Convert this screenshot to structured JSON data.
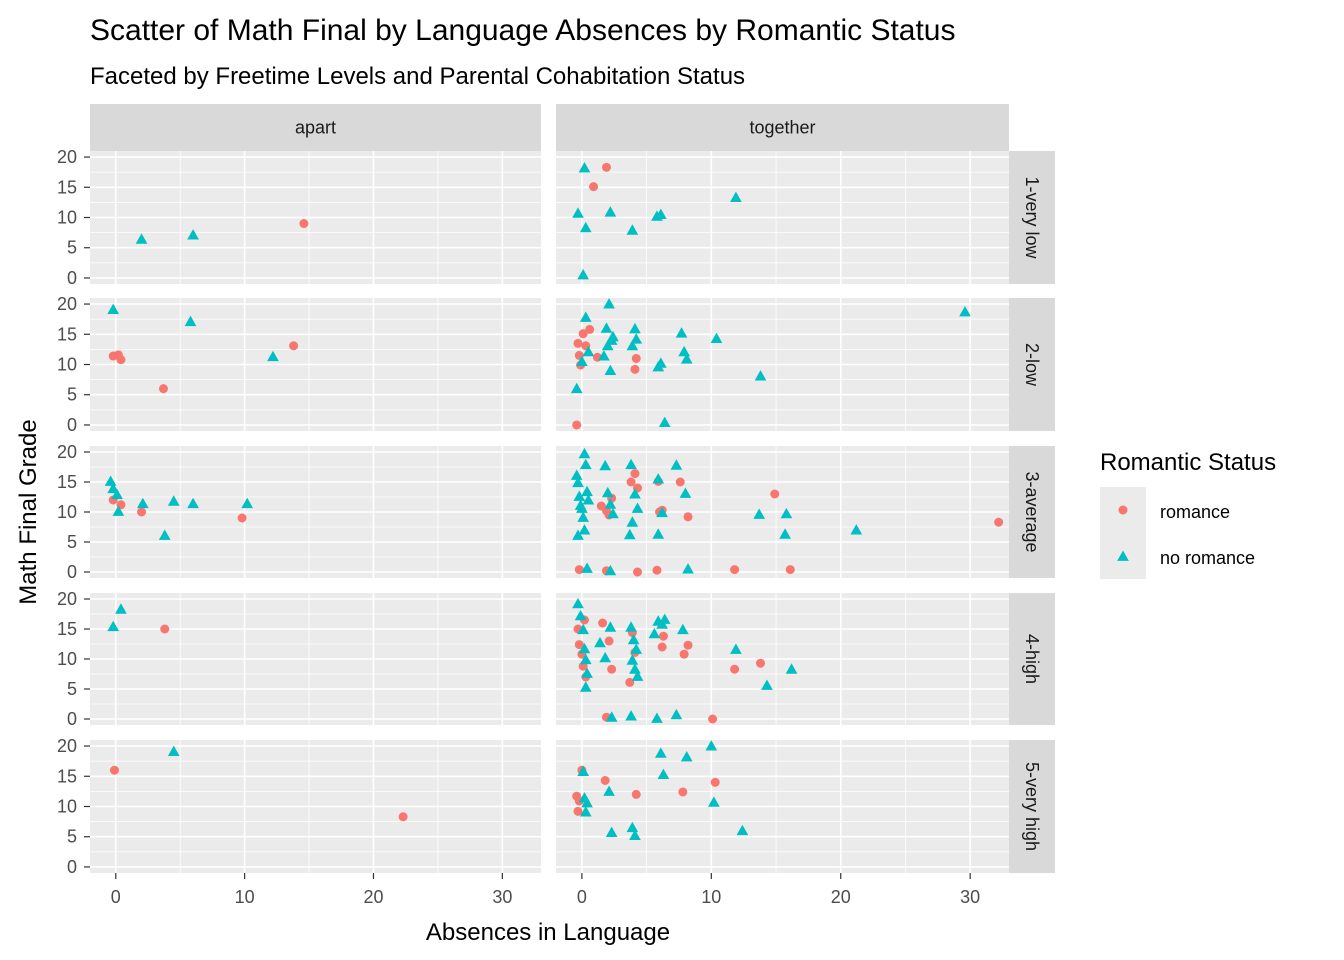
{
  "chart_data": {
    "type": "scatter",
    "title": "Scatter of Math Final by Language Absences by Romantic Status",
    "subtitle": "Faceted by Freetime Levels and Parental Cohabitation Status",
    "xlabel": "Absences in Language",
    "ylabel": "Math Final Grade",
    "xlim": [
      -2,
      33
    ],
    "ylim": [
      -1,
      21
    ],
    "x_ticks": [
      0,
      10,
      20,
      30
    ],
    "y_ticks": [
      0,
      5,
      10,
      15,
      20
    ],
    "grid": true,
    "legend_position": "right",
    "facet_columns": [
      "apart",
      "together"
    ],
    "facet_rows": [
      "1-very low",
      "2-low",
      "3-average",
      "4-high",
      "5-very high"
    ],
    "legend": {
      "title": "Romantic Status",
      "entries": [
        {
          "name": "romance",
          "shape": "circle",
          "color": "#F8766D"
        },
        {
          "name": "no romance",
          "shape": "triangle",
          "color": "#00BFC4"
        }
      ]
    },
    "panels": [
      {
        "col": "apart",
        "row": "1-very low",
        "romance": [
          [
            14.6,
            9
          ]
        ],
        "no_romance": [
          [
            2,
            6.3
          ],
          [
            6,
            7
          ]
        ]
      },
      {
        "col": "together",
        "row": "1-very low",
        "romance": [
          [
            1.9,
            18.3
          ],
          [
            0.9,
            15.1
          ]
        ],
        "no_romance": [
          [
            0.2,
            18.1
          ],
          [
            -0.3,
            10.6
          ],
          [
            0.3,
            8.2
          ],
          [
            2.2,
            10.8
          ],
          [
            3.9,
            7.8
          ],
          [
            5.8,
            10.1
          ],
          [
            6.1,
            10.4
          ],
          [
            11.9,
            13.2
          ],
          [
            0.1,
            0.4
          ]
        ]
      },
      {
        "col": "apart",
        "row": "2-low",
        "romance": [
          [
            -0.2,
            11.4
          ],
          [
            0.2,
            11.6
          ],
          [
            0.4,
            10.8
          ],
          [
            3.7,
            6
          ],
          [
            13.8,
            13.1
          ]
        ],
        "no_romance": [
          [
            -0.2,
            19
          ],
          [
            5.8,
            17
          ],
          [
            12.2,
            11.2
          ]
        ],
        "note": "small cluster near x=0, y=11"
      },
      {
        "col": "together",
        "row": "2-low",
        "romance": [
          [
            -0.3,
            13.5
          ],
          [
            -0.2,
            11.5
          ],
          [
            -0.1,
            9.9
          ],
          [
            0.1,
            15.1
          ],
          [
            0.3,
            13.1
          ],
          [
            0.6,
            15.8
          ],
          [
            1.2,
            11.2
          ],
          [
            4.2,
            11
          ],
          [
            4.1,
            9.2
          ],
          [
            -0.4,
            0
          ]
        ],
        "no_romance": [
          [
            -0.4,
            5.9
          ],
          [
            0,
            10.4
          ],
          [
            0.3,
            17.7
          ],
          [
            0.5,
            12
          ],
          [
            1.7,
            11.3
          ],
          [
            1.9,
            15.9
          ],
          [
            2,
            13
          ],
          [
            2.1,
            19.9
          ],
          [
            2.2,
            8.9
          ],
          [
            2.3,
            13.9
          ],
          [
            2.4,
            14.5
          ],
          [
            3.9,
            13
          ],
          [
            4.1,
            15.8
          ],
          [
            4.2,
            14.1
          ],
          [
            5.9,
            9.5
          ],
          [
            6.1,
            10.1
          ],
          [
            6.4,
            0.3
          ],
          [
            7.7,
            15.1
          ],
          [
            7.9,
            12
          ],
          [
            8.1,
            10.8
          ],
          [
            10.4,
            14.2
          ],
          [
            13.8,
            8
          ],
          [
            29.6,
            18.6
          ]
        ]
      },
      {
        "col": "apart",
        "row": "3-average",
        "romance": [
          [
            -0.2,
            12
          ],
          [
            0.4,
            11.2
          ],
          [
            2,
            10
          ],
          [
            9.8,
            9
          ]
        ],
        "no_romance": [
          [
            -0.4,
            15
          ],
          [
            -0.2,
            13.8
          ],
          [
            0.1,
            12.8
          ],
          [
            0.2,
            10
          ],
          [
            2.1,
            11.3
          ],
          [
            3.8,
            6
          ],
          [
            4.5,
            11.7
          ],
          [
            6,
            11.3
          ],
          [
            10.2,
            11.3
          ]
        ]
      },
      {
        "col": "together",
        "row": "3-average",
        "romance": [
          [
            1.5,
            11
          ],
          [
            1.9,
            10.2
          ],
          [
            2.1,
            9.5
          ],
          [
            2.3,
            12.3
          ],
          [
            3.8,
            15
          ],
          [
            4.1,
            16.4
          ],
          [
            4.3,
            14
          ],
          [
            5.9,
            15.1
          ],
          [
            6,
            10
          ],
          [
            6.2,
            10.3
          ],
          [
            7.6,
            15
          ],
          [
            8.2,
            9.2
          ],
          [
            14.9,
            13
          ],
          [
            32.2,
            8.3
          ],
          [
            -0.2,
            0.4
          ],
          [
            1.9,
            0.2
          ],
          [
            4.3,
            0
          ],
          [
            5.8,
            0.3
          ],
          [
            11.8,
            0.4
          ],
          [
            16.1,
            0.4
          ]
        ],
        "no_romance": [
          [
            -0.4,
            16
          ],
          [
            -0.3,
            14.8
          ],
          [
            -0.2,
            12.5
          ],
          [
            -0.1,
            11
          ],
          [
            0,
            10.5
          ],
          [
            0.1,
            9
          ],
          [
            0.2,
            19.6
          ],
          [
            0.3,
            17.8
          ],
          [
            0.4,
            13.3
          ],
          [
            0.5,
            11.9
          ],
          [
            -0.3,
            6
          ],
          [
            0.2,
            6.9
          ],
          [
            0.4,
            0.5
          ],
          [
            1.8,
            17.6
          ],
          [
            2,
            13.1
          ],
          [
            2.2,
            11.2
          ],
          [
            2.4,
            9.6
          ],
          [
            3.8,
            17.8
          ],
          [
            4.1,
            12.9
          ],
          [
            4.3,
            10.5
          ],
          [
            3.9,
            8.2
          ],
          [
            3.7,
            6.1
          ],
          [
            5.9,
            15.4
          ],
          [
            6.2,
            9.8
          ],
          [
            5.9,
            6.2
          ],
          [
            7.3,
            17.7
          ],
          [
            8,
            13
          ],
          [
            13.7,
            9.5
          ],
          [
            15.7,
            6.2
          ],
          [
            15.8,
            9.6
          ],
          [
            21.2,
            6.9
          ],
          [
            2.2,
            0.1
          ],
          [
            8.2,
            0.4
          ]
        ]
      },
      {
        "col": "apart",
        "row": "4-high",
        "romance": [
          [
            3.8,
            15
          ]
        ],
        "no_romance": [
          [
            -0.2,
            15.3
          ],
          [
            0.4,
            18.2
          ]
        ]
      },
      {
        "col": "together",
        "row": "4-high",
        "romance": [
          [
            -0.3,
            15
          ],
          [
            -0.2,
            12.4
          ],
          [
            0,
            10.8
          ],
          [
            0.1,
            8.8
          ],
          [
            0.3,
            7
          ],
          [
            0.2,
            16.5
          ],
          [
            1.6,
            16
          ],
          [
            2.1,
            13
          ],
          [
            2.3,
            8.3
          ],
          [
            3.7,
            6.1
          ],
          [
            3.9,
            14.4
          ],
          [
            4.1,
            11.1
          ],
          [
            6.2,
            12
          ],
          [
            6.3,
            13.8
          ],
          [
            7.9,
            10.8
          ],
          [
            8.2,
            12.3
          ],
          [
            11.8,
            8.3
          ],
          [
            13.8,
            9.3
          ],
          [
            1.9,
            0.3
          ],
          [
            10.1,
            0
          ]
        ],
        "no_romance": [
          [
            -0.3,
            19.1
          ],
          [
            -0.1,
            17.1
          ],
          [
            0.1,
            14.8
          ],
          [
            0.2,
            11.6
          ],
          [
            0.3,
            9.8
          ],
          [
            0.4,
            7.5
          ],
          [
            0.3,
            5.2
          ],
          [
            1.4,
            12.6
          ],
          [
            1.8,
            10.1
          ],
          [
            2.2,
            15.2
          ],
          [
            3.8,
            15.2
          ],
          [
            4,
            13.1
          ],
          [
            4.2,
            11.5
          ],
          [
            3.9,
            9.7
          ],
          [
            4.1,
            8.2
          ],
          [
            4.3,
            7
          ],
          [
            5.6,
            14.1
          ],
          [
            5.9,
            16.2
          ],
          [
            6.2,
            15.7
          ],
          [
            6.4,
            16.5
          ],
          [
            7.8,
            14.8
          ],
          [
            11.9,
            11.5
          ],
          [
            14.3,
            5.5
          ],
          [
            16.2,
            8.2
          ],
          [
            2.3,
            0.2
          ],
          [
            3.8,
            0.4
          ],
          [
            5.8,
            0
          ],
          [
            7.3,
            0.6
          ]
        ]
      },
      {
        "col": "apart",
        "row": "5-very high",
        "romance": [
          [
            -0.1,
            16
          ],
          [
            22.3,
            8.3
          ]
        ],
        "no_romance": [
          [
            4.5,
            19
          ]
        ]
      },
      {
        "col": "together",
        "row": "5-very high",
        "romance": [
          [
            -0.4,
            11.7
          ],
          [
            -0.3,
            9.2
          ],
          [
            -0.2,
            10.9
          ],
          [
            0,
            16
          ],
          [
            1.8,
            14.3
          ],
          [
            4.2,
            12
          ],
          [
            7.8,
            12.4
          ],
          [
            10.3,
            14
          ]
        ],
        "no_romance": [
          [
            0.1,
            15.7
          ],
          [
            0.2,
            11.3
          ],
          [
            0.3,
            9
          ],
          [
            0.4,
            10.5
          ],
          [
            2.1,
            12.4
          ],
          [
            2.3,
            5.6
          ],
          [
            3.9,
            6.4
          ],
          [
            4.1,
            5.1
          ],
          [
            6.1,
            18.7
          ],
          [
            6.3,
            15.2
          ],
          [
            8.1,
            18.1
          ],
          [
            10,
            19.9
          ],
          [
            10.2,
            10.6
          ],
          [
            12.4,
            5.9
          ]
        ]
      }
    ]
  }
}
